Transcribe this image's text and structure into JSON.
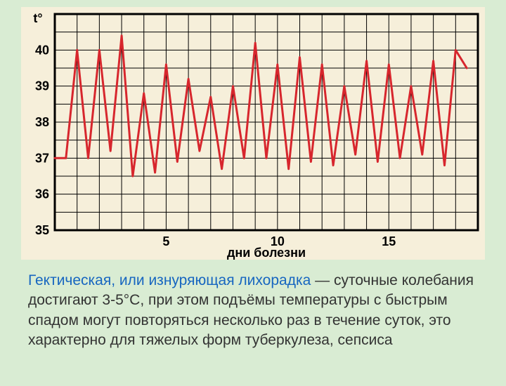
{
  "chart": {
    "type": "line",
    "background_color": "#f6efda",
    "plot_color": "#f6efda",
    "grid_color": "#000000",
    "grid_stroke_width": 1,
    "outer_border_width": 3,
    "line_color": "#d7262d",
    "line_width": 3,
    "y_axis": {
      "label": "t°",
      "label_fontsize": 18,
      "label_color": "#000000",
      "min": 35,
      "max": 41,
      "tick_step_major": 1,
      "tick_step_minor": 0.5,
      "tick_labels": [
        "35",
        "36",
        "37",
        "38",
        "39",
        "40"
      ],
      "tick_fontsize": 18
    },
    "x_axis": {
      "label": "дни болезни",
      "label_fontsize": 18,
      "label_font_weight": "bold",
      "label_color": "#000000",
      "min": 0,
      "max": 19,
      "tick_step": 1,
      "tick_labels_at": [
        5,
        10,
        15
      ],
      "tick_labels": [
        "5",
        "10",
        "15"
      ],
      "tick_fontsize": 18
    },
    "series": [
      {
        "name": "temperature",
        "x": [
          0.0,
          0.5,
          1.0,
          1.5,
          2.0,
          2.5,
          3.0,
          3.5,
          4.0,
          4.5,
          5.0,
          5.5,
          6.0,
          6.5,
          7.0,
          7.5,
          8.0,
          8.5,
          9.0,
          9.5,
          10.0,
          10.5,
          11.0,
          11.5,
          12.0,
          12.5,
          13.0,
          13.5,
          14.0,
          14.5,
          15.0,
          15.5,
          16.0,
          16.5,
          17.0,
          17.5,
          18.0,
          18.5
        ],
        "y": [
          37.0,
          37.0,
          40.0,
          37.0,
          40.0,
          37.2,
          40.4,
          36.5,
          38.8,
          36.6,
          39.6,
          36.9,
          39.2,
          37.2,
          38.7,
          36.7,
          39.0,
          37.0,
          40.2,
          37.0,
          39.6,
          36.7,
          39.8,
          36.9,
          39.6,
          36.8,
          39.0,
          37.1,
          39.7,
          36.9,
          39.6,
          37.0,
          39.0,
          37.1,
          39.7,
          36.8,
          40.0,
          39.5
        ]
      }
    ]
  },
  "caption": {
    "lead": "Гектическая, или изнуряющая лихорадка",
    "lead_color": "#1766c0",
    "body": " — суточные колебания достигают 3-5°С, при этом подъёмы температуры с быстрым спадом могут повторяться несколько раз в течение суток, это характерно для тяжелых форм туберкулеза, сепсиса",
    "body_color": "#333333",
    "fontsize": 21
  },
  "page": {
    "background_color": "#d9ecd3"
  }
}
